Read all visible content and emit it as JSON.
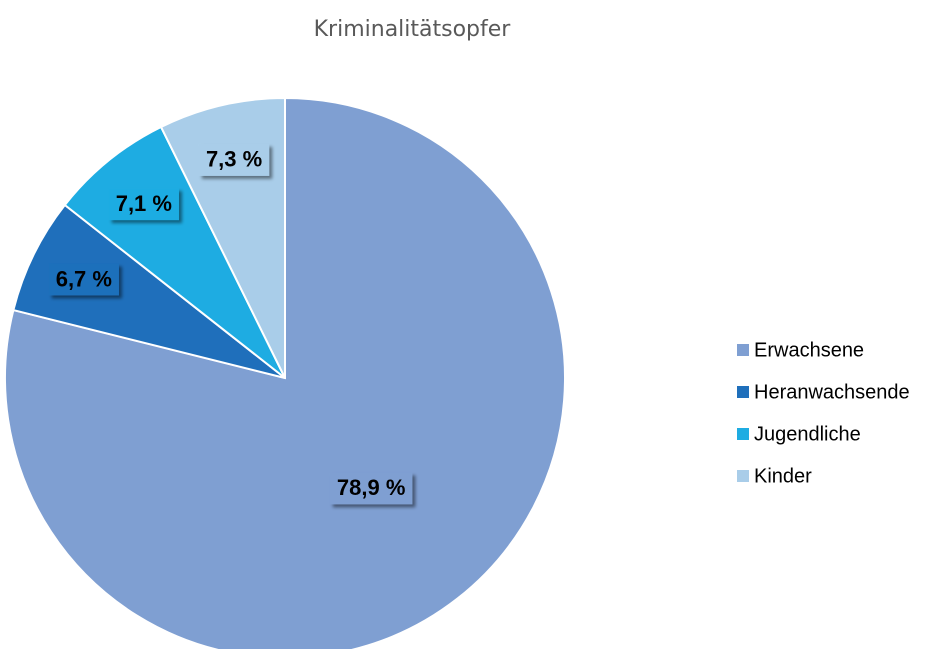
{
  "chart_data": {
    "type": "pie",
    "title": "Kriminalitätsopfer",
    "categories": [
      "Erwachsene",
      "Heranwachsende",
      "Jugendliche",
      "Kinder"
    ],
    "values": [
      78.9,
      6.7,
      7.1,
      7.3
    ],
    "value_labels": [
      "78,9 %",
      "6,7 %",
      "7,1 %",
      "7,3 %"
    ],
    "colors": [
      "#7f9fd2",
      "#1f6fbb",
      "#1eace2",
      "#a9cde9"
    ],
    "legend": "right"
  }
}
